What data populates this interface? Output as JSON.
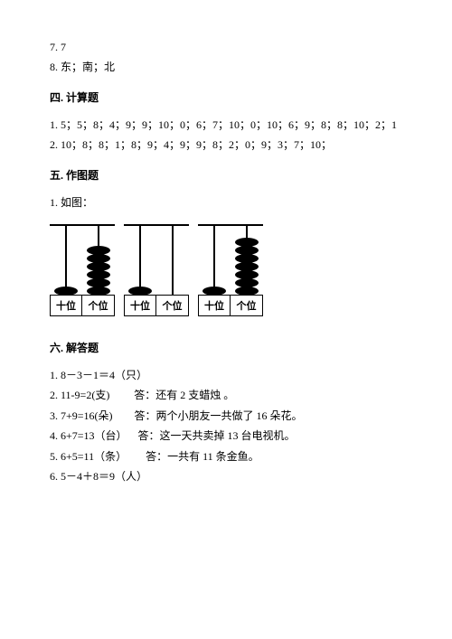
{
  "top": {
    "line1": "7. 7",
    "line2": "8. 东；南；北"
  },
  "section4": {
    "heading": "四. 计算题",
    "line1": "1. 5；5；8；4；9；9；10；0；6；7；10；0；10；6；9；8；8；10；2；1",
    "line2": "2. 10；8；8；1；8；9；4；9；9；8；2；0；9；3；7；10；"
  },
  "section5": {
    "heading": "五. 作图题",
    "line1": "1. 如图：",
    "labels": {
      "tens": "十位",
      "ones": "个位"
    },
    "abacus": [
      {
        "tens_beads": 1,
        "ones_beads": 6
      },
      {
        "tens_beads": 1,
        "ones_beads": 0
      },
      {
        "tens_beads": 1,
        "ones_beads": 7
      }
    ]
  },
  "section6": {
    "heading": "六. 解答题",
    "items": [
      {
        "text": "1. 8－3－1＝4（只）"
      },
      {
        "text": "2. 11-9=2(支)         答：还有 2 支蜡烛 。"
      },
      {
        "text": "3. 7+9=16(朵)        答：两个小朋友一共做了 16 朵花。"
      },
      {
        "text": "4. 6+7=13（台）    答：这一天共卖掉 13 台电视机。"
      },
      {
        "text": "5. 6+5=11（条）       答：一共有 11 条金鱼。"
      },
      {
        "text": "6. 5－4＋8＝9（人）"
      }
    ]
  }
}
